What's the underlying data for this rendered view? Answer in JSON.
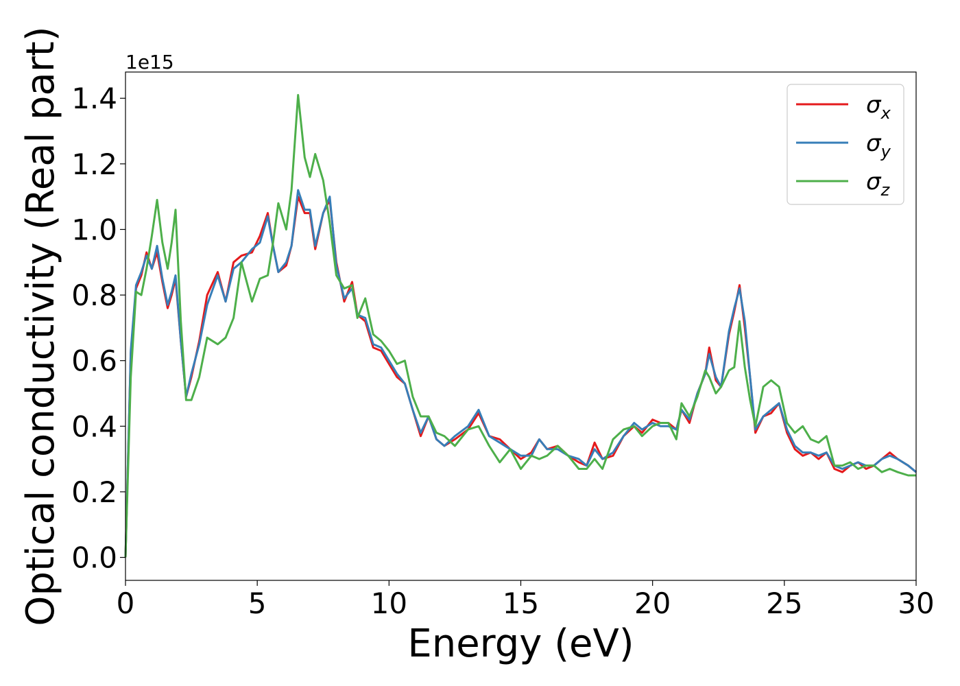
{
  "chart_data": {
    "type": "line",
    "title": "",
    "xlabel": "Energy (eV)",
    "ylabel": "Optical conductivity (Real part)",
    "y_offset_label": "1e15",
    "xlim": [
      0,
      30
    ],
    "ylim": [
      -0.07,
      1.48
    ],
    "xticks": [
      0,
      5,
      10,
      15,
      20,
      25,
      30
    ],
    "xtick_labels": [
      "0",
      "5",
      "10",
      "15",
      "20",
      "25",
      "30"
    ],
    "yticks": [
      0.0,
      0.2,
      0.4,
      0.6,
      0.8,
      1.0,
      1.2,
      1.4
    ],
    "ytick_labels": [
      "0.0",
      "0.2",
      "0.4",
      "0.6",
      "0.8",
      "1.0",
      "1.2",
      "1.4"
    ],
    "grid": false,
    "legend_position": "top-right",
    "x": [
      0,
      0.2,
      0.4,
      0.6,
      0.8,
      1.0,
      1.2,
      1.4,
      1.6,
      1.75,
      1.9,
      2.1,
      2.3,
      2.5,
      2.8,
      3.1,
      3.5,
      3.8,
      4.1,
      4.4,
      4.8,
      5.1,
      5.4,
      5.6,
      5.8,
      6.1,
      6.3,
      6.55,
      6.8,
      7.0,
      7.2,
      7.5,
      7.75,
      8.0,
      8.3,
      8.6,
      8.8,
      9.1,
      9.4,
      9.7,
      10.0,
      10.3,
      10.6,
      10.9,
      11.2,
      11.5,
      11.8,
      12.1,
      12.5,
      13.0,
      13.4,
      13.8,
      14.2,
      14.6,
      15.0,
      15.4,
      15.7,
      16.0,
      16.4,
      16.8,
      17.2,
      17.5,
      17.8,
      18.1,
      18.5,
      18.9,
      19.3,
      19.6,
      20.0,
      20.3,
      20.6,
      20.9,
      21.1,
      21.4,
      21.7,
      22.0,
      22.15,
      22.4,
      22.6,
      22.9,
      23.1,
      23.3,
      23.5,
      23.7,
      23.9,
      24.2,
      24.5,
      24.8,
      25.1,
      25.4,
      25.7,
      26.0,
      26.3,
      26.6,
      26.9,
      27.2,
      27.5,
      27.8,
      28.1,
      28.4,
      28.7,
      29.0,
      29.3,
      29.7,
      30.0
    ],
    "series": [
      {
        "name": "σx",
        "legend_symbol": "σ",
        "legend_subscript": "x",
        "color": "#e41a1c",
        "values": [
          0.0,
          0.62,
          0.82,
          0.86,
          0.93,
          0.88,
          0.93,
          0.84,
          0.76,
          0.8,
          0.85,
          0.66,
          0.49,
          0.55,
          0.66,
          0.8,
          0.87,
          0.78,
          0.9,
          0.92,
          0.93,
          0.98,
          1.05,
          0.95,
          0.87,
          0.89,
          0.95,
          1.1,
          1.05,
          1.05,
          0.94,
          1.05,
          1.09,
          0.9,
          0.78,
          0.84,
          0.74,
          0.72,
          0.64,
          0.63,
          0.59,
          0.55,
          0.53,
          0.45,
          0.37,
          0.43,
          0.36,
          0.34,
          0.36,
          0.39,
          0.44,
          0.37,
          0.36,
          0.33,
          0.3,
          0.32,
          0.36,
          0.33,
          0.34,
          0.31,
          0.29,
          0.28,
          0.35,
          0.3,
          0.31,
          0.37,
          0.4,
          0.38,
          0.42,
          0.41,
          0.41,
          0.39,
          0.45,
          0.41,
          0.5,
          0.56,
          0.64,
          0.54,
          0.52,
          0.68,
          0.75,
          0.83,
          0.7,
          0.55,
          0.38,
          0.43,
          0.44,
          0.47,
          0.38,
          0.33,
          0.31,
          0.32,
          0.3,
          0.32,
          0.27,
          0.26,
          0.28,
          0.29,
          0.27,
          0.28,
          0.3,
          0.32,
          0.3,
          0.28,
          0.26
        ]
      },
      {
        "name": "σy",
        "legend_symbol": "σ",
        "legend_subscript": "y",
        "color": "#377eb8",
        "values": [
          0.0,
          0.63,
          0.83,
          0.87,
          0.92,
          0.88,
          0.95,
          0.85,
          0.77,
          0.81,
          0.86,
          0.66,
          0.49,
          0.56,
          0.65,
          0.77,
          0.86,
          0.78,
          0.88,
          0.9,
          0.94,
          0.96,
          1.04,
          0.95,
          0.87,
          0.9,
          0.95,
          1.12,
          1.06,
          1.06,
          0.95,
          1.05,
          1.1,
          0.89,
          0.79,
          0.82,
          0.74,
          0.73,
          0.65,
          0.64,
          0.6,
          0.56,
          0.53,
          0.45,
          0.38,
          0.43,
          0.36,
          0.34,
          0.37,
          0.4,
          0.45,
          0.37,
          0.35,
          0.33,
          0.31,
          0.31,
          0.36,
          0.33,
          0.33,
          0.31,
          0.3,
          0.28,
          0.33,
          0.3,
          0.32,
          0.37,
          0.41,
          0.39,
          0.41,
          0.4,
          0.4,
          0.39,
          0.45,
          0.42,
          0.5,
          0.56,
          0.62,
          0.55,
          0.52,
          0.69,
          0.76,
          0.82,
          0.72,
          0.55,
          0.39,
          0.43,
          0.45,
          0.47,
          0.39,
          0.34,
          0.32,
          0.32,
          0.31,
          0.32,
          0.28,
          0.27,
          0.28,
          0.29,
          0.28,
          0.28,
          0.3,
          0.31,
          0.3,
          0.28,
          0.26
        ]
      },
      {
        "name": "σz",
        "legend_symbol": "σ",
        "legend_subscript": "z",
        "color": "#4daf4a",
        "values": [
          0.0,
          0.55,
          0.81,
          0.8,
          0.88,
          0.98,
          1.09,
          0.96,
          0.88,
          0.96,
          1.06,
          0.72,
          0.48,
          0.48,
          0.55,
          0.67,
          0.65,
          0.67,
          0.73,
          0.9,
          0.78,
          0.85,
          0.86,
          0.96,
          1.08,
          1.0,
          1.12,
          1.41,
          1.22,
          1.16,
          1.23,
          1.15,
          1.02,
          0.86,
          0.82,
          0.83,
          0.73,
          0.79,
          0.68,
          0.66,
          0.63,
          0.59,
          0.6,
          0.49,
          0.43,
          0.43,
          0.38,
          0.37,
          0.34,
          0.39,
          0.4,
          0.34,
          0.29,
          0.33,
          0.27,
          0.31,
          0.3,
          0.31,
          0.34,
          0.31,
          0.27,
          0.27,
          0.3,
          0.27,
          0.36,
          0.39,
          0.4,
          0.37,
          0.4,
          0.41,
          0.41,
          0.36,
          0.47,
          0.43,
          0.49,
          0.57,
          0.55,
          0.5,
          0.52,
          0.57,
          0.58,
          0.72,
          0.58,
          0.48,
          0.4,
          0.52,
          0.54,
          0.52,
          0.41,
          0.38,
          0.4,
          0.36,
          0.35,
          0.37,
          0.28,
          0.28,
          0.29,
          0.27,
          0.28,
          0.28,
          0.26,
          0.27,
          0.26,
          0.25,
          0.25
        ]
      }
    ]
  }
}
